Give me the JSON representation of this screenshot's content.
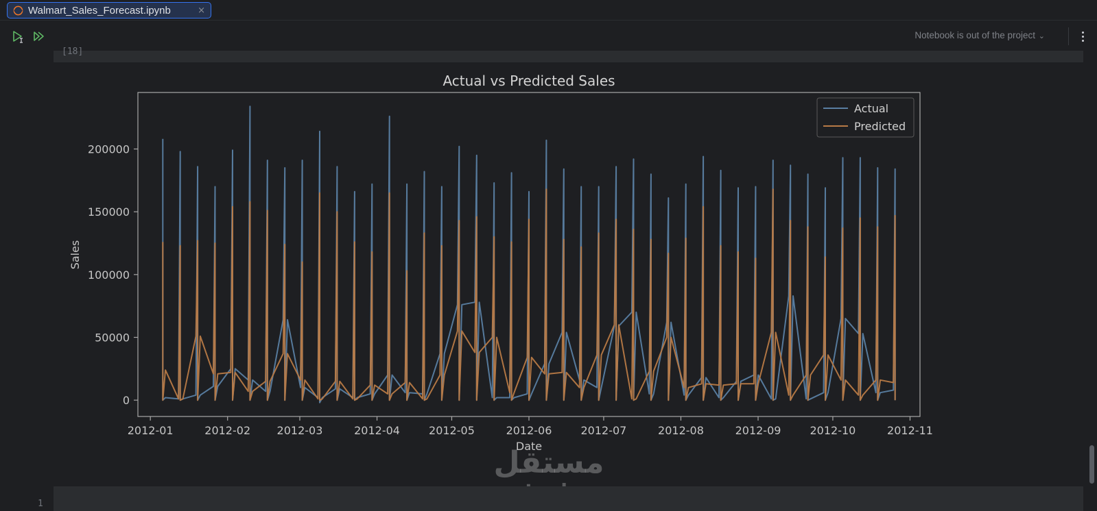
{
  "tab": {
    "label": "Walmart_Sales_Forecast.ipynb",
    "close": "×"
  },
  "toolbar": {
    "status": "Notebook is out of the project",
    "status_chevron": "⌄"
  },
  "cell": {
    "exec_count": "[18]"
  },
  "next_cell": {
    "line_number": "1"
  },
  "watermark": {
    "arabic": "مستقل",
    "latin": "mostaql.com"
  },
  "colors": {
    "actual": "#5a7fa3",
    "predicted": "#b87a46",
    "accent": "#3574f0"
  },
  "chart_data": {
    "type": "line",
    "title": "Actual vs Predicted Sales",
    "xlabel": "Date",
    "ylabel": "Sales",
    "ylim": [
      -13000,
      245000
    ],
    "xlim": [
      "2011-12-27",
      "2012-11-05"
    ],
    "yticks": [
      0,
      50000,
      100000,
      150000,
      200000
    ],
    "ytick_labels": [
      "0",
      "50000",
      "100000",
      "150000",
      "200000"
    ],
    "xticks": [
      "2012-01-01",
      "2012-02-01",
      "2012-03-01",
      "2012-04-01",
      "2012-05-01",
      "2012-06-01",
      "2012-07-01",
      "2012-08-01",
      "2012-09-01",
      "2012-10-01",
      "2012-11-01"
    ],
    "xtick_labels": [
      "2012-01",
      "2012-02",
      "2012-03",
      "2012-04",
      "2012-05",
      "2012-06",
      "2012-07",
      "2012-08",
      "2012-09",
      "2012-10",
      "2012-11"
    ],
    "legend": {
      "position": "top-right",
      "entries": [
        "Actual",
        "Predicted"
      ]
    },
    "grid": false,
    "weeks": [
      "2012-01-06",
      "2012-01-13",
      "2012-01-20",
      "2012-01-27",
      "2012-02-03",
      "2012-02-10",
      "2012-02-17",
      "2012-02-24",
      "2012-03-02",
      "2012-03-09",
      "2012-03-16",
      "2012-03-23",
      "2012-03-30",
      "2012-04-06",
      "2012-04-13",
      "2012-04-20",
      "2012-04-27",
      "2012-05-04",
      "2012-05-11",
      "2012-05-18",
      "2012-05-25",
      "2012-06-01",
      "2012-06-08",
      "2012-06-15",
      "2012-06-22",
      "2012-06-29",
      "2012-07-06",
      "2012-07-13",
      "2012-07-20",
      "2012-07-27",
      "2012-08-03",
      "2012-08-10",
      "2012-08-17",
      "2012-08-24",
      "2012-08-31",
      "2012-09-07",
      "2012-09-14",
      "2012-09-21",
      "2012-09-28",
      "2012-10-05",
      "2012-10-12",
      "2012-10-19",
      "2012-10-26"
    ],
    "series": [
      {
        "name": "Actual",
        "min": [
          0,
          0,
          0,
          0,
          0,
          0,
          0,
          0,
          0,
          -2000,
          0,
          0,
          0,
          0,
          0,
          0,
          0,
          0,
          0,
          0,
          0,
          0,
          0,
          0,
          0,
          0,
          0,
          0,
          0,
          0,
          0,
          0,
          0,
          0,
          0,
          0,
          0,
          0,
          0,
          0,
          0,
          0,
          0
        ],
        "max": [
          208000,
          198000,
          186000,
          170000,
          199000,
          234000,
          191000,
          185000,
          191000,
          214000,
          186000,
          166000,
          172000,
          226000,
          172000,
          182000,
          170000,
          202000,
          195000,
          173000,
          181000,
          166000,
          207000,
          184000,
          170000,
          170000,
          186000,
          192000,
          180000,
          161000,
          172000,
          194000,
          183000,
          169000,
          170000,
          191000,
          187000,
          180000,
          169000,
          193000,
          193000,
          185000,
          184000
        ],
        "links": [
          2000,
          1000,
          4000,
          11000,
          25000,
          16000,
          7000,
          64000,
          10000,
          2000,
          9000,
          2000,
          5000,
          20000,
          6000,
          5000,
          37000,
          76000,
          78000,
          2000,
          2000,
          5000,
          29000,
          54000,
          16000,
          10000,
          59000,
          70000,
          5000,
          62000,
          4000,
          18000,
          2000,
          15000,
          20000,
          1000,
          83000,
          1000,
          6000,
          65000,
          53000,
          6000,
          8000
        ]
      },
      {
        "name": "Predicted",
        "min": [
          0,
          0,
          0,
          0,
          0,
          0,
          0,
          0,
          0,
          0,
          0,
          0,
          0,
          0,
          0,
          0,
          0,
          0,
          0,
          0,
          0,
          0,
          0,
          0,
          0,
          0,
          0,
          0,
          0,
          0,
          0,
          0,
          0,
          0,
          0,
          0,
          0,
          0,
          0,
          0,
          0,
          0,
          0
        ],
        "max": [
          126000,
          123000,
          127000,
          125000,
          154000,
          158000,
          151000,
          124000,
          110000,
          165000,
          150000,
          126000,
          118000,
          165000,
          103000,
          133000,
          123000,
          143000,
          146000,
          130000,
          126000,
          144000,
          168000,
          128000,
          122000,
          133000,
          144000,
          136000,
          128000,
          117000,
          129000,
          154000,
          123000,
          118000,
          113000,
          168000,
          143000,
          138000,
          114000,
          137000,
          145000,
          138000,
          147000
        ],
        "links": [
          24000,
          1000,
          51000,
          21000,
          22000,
          7000,
          15000,
          37000,
          16000,
          1000,
          15000,
          1000,
          12000,
          5000,
          14000,
          1000,
          20000,
          55000,
          38000,
          50000,
          6000,
          34000,
          21000,
          22000,
          10000,
          36000,
          60000,
          1000,
          23000,
          50000,
          10000,
          13000,
          12000,
          13000,
          13000,
          54000,
          4000,
          20000,
          36000,
          16000,
          4000,
          16000,
          14000
        ]
      }
    ]
  }
}
